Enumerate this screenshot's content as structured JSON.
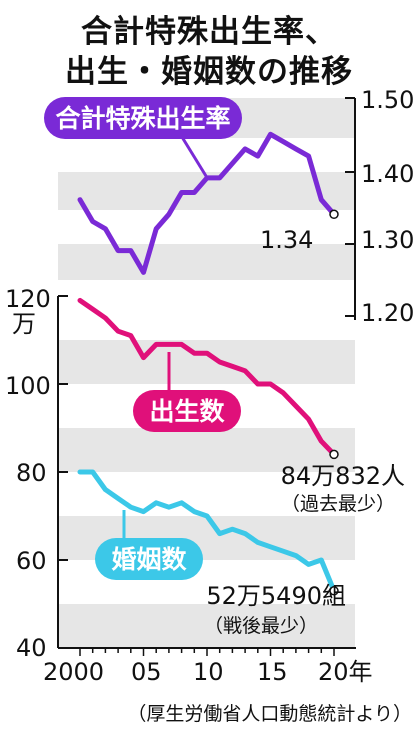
{
  "title_line1": "合計特殊出生率、",
  "title_line2": "出生・婚姻数の推移",
  "source": "（厚生労働省人口動態統計より）",
  "colors": {
    "fertility": "#7a2ad6",
    "births": "#e0107a",
    "marriages": "#3cc8e8",
    "band": "#e6e6e6"
  },
  "chart_data": [
    {
      "type": "line",
      "series": [
        {
          "name": "合計特殊出生率",
          "x": [
            2000,
            2001,
            2002,
            2003,
            2004,
            2005,
            2006,
            2007,
            2008,
            2009,
            2010,
            2011,
            2012,
            2013,
            2014,
            2015,
            2016,
            2017,
            2018,
            2019,
            2020
          ],
          "values": [
            1.36,
            1.33,
            1.32,
            1.29,
            1.29,
            1.26,
            1.32,
            1.34,
            1.37,
            1.37,
            1.39,
            1.39,
            1.41,
            1.43,
            1.42,
            1.45,
            1.44,
            1.43,
            1.42,
            1.36,
            1.34
          ]
        }
      ],
      "ylim": [
        1.2,
        1.5
      ],
      "yticks": [
        "1.50",
        "1.40",
        "1.30",
        "1.20"
      ],
      "annotations": [
        "1.34"
      ]
    },
    {
      "type": "line",
      "series": [
        {
          "name": "出生数",
          "x": [
            2000,
            2001,
            2002,
            2003,
            2004,
            2005,
            2006,
            2007,
            2008,
            2009,
            2010,
            2011,
            2012,
            2013,
            2014,
            2015,
            2016,
            2017,
            2018,
            2019,
            2020
          ],
          "values": [
            119,
            117,
            115,
            112,
            111,
            106,
            109,
            109,
            109,
            107,
            107,
            105,
            104,
            103,
            100,
            100,
            98,
            95,
            92,
            87,
            84
          ]
        },
        {
          "name": "婚姻数",
          "x": [
            2000,
            2001,
            2002,
            2003,
            2004,
            2005,
            2006,
            2007,
            2008,
            2009,
            2010,
            2011,
            2012,
            2013,
            2014,
            2015,
            2016,
            2017,
            2018,
            2019,
            2020
          ],
          "values": [
            80,
            80,
            76,
            74,
            72,
            71,
            73,
            72,
            73,
            71,
            70,
            66,
            67,
            66,
            64,
            63,
            62,
            61,
            59,
            60,
            53
          ]
        }
      ],
      "ylim": [
        40,
        120
      ],
      "yticks": [
        "120",
        "100",
        "80",
        "60",
        "40"
      ],
      "yunit": "万",
      "xticks": [
        "2000",
        "05",
        "10",
        "15",
        "20年"
      ],
      "annotations": [
        "84万832人",
        "（過去最少）",
        "52万5490組",
        "（戦後最少）"
      ]
    }
  ]
}
